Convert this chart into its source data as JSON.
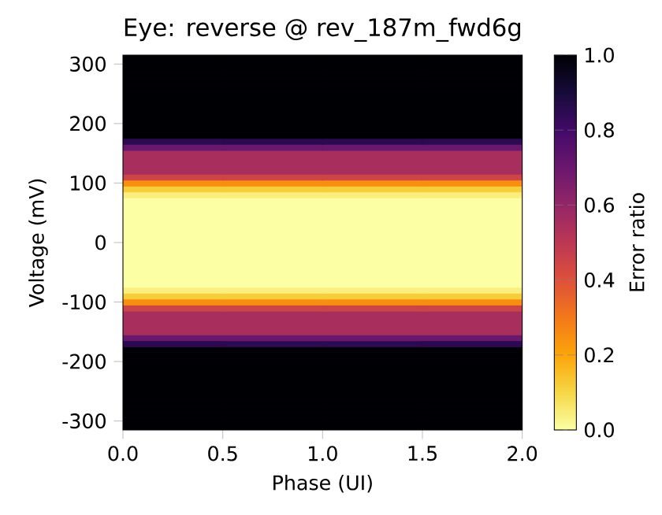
{
  "chart_data": {
    "type": "heatmap",
    "title": "Eye: reverse @ rev_187m_fwd6g",
    "xlabel": "Phase (UI)",
    "ylabel": "Voltage (mV)",
    "clabel": "Error ratio",
    "x": [
      0.25,
      0.75,
      1.25,
      1.75
    ],
    "y": [
      310,
      300,
      290,
      280,
      270,
      260,
      250,
      240,
      230,
      220,
      210,
      200,
      190,
      180,
      170,
      160,
      150,
      140,
      130,
      120,
      110,
      100,
      90,
      80,
      70,
      60,
      50,
      40,
      30,
      20,
      10,
      0,
      -10,
      -20,
      -30,
      -40,
      -50,
      -60,
      -70,
      -80,
      -90,
      -100,
      -110,
      -120,
      -130,
      -140,
      -150,
      -160,
      -170,
      -180,
      -190,
      -200,
      -210,
      -220,
      -230,
      -240,
      -250,
      -260,
      -270,
      -280,
      -290,
      -300,
      -310
    ],
    "cells": [
      [
        1,
        1,
        1,
        1
      ],
      [
        1,
        1,
        1,
        1
      ],
      [
        1,
        1,
        1,
        1
      ],
      [
        1,
        1,
        1,
        1
      ],
      [
        1,
        1,
        1,
        1
      ],
      [
        1,
        1,
        1,
        1
      ],
      [
        1,
        1,
        1,
        1
      ],
      [
        1,
        1,
        1,
        1
      ],
      [
        1,
        1,
        1,
        1
      ],
      [
        1,
        1,
        1,
        1
      ],
      [
        1,
        1,
        1,
        1
      ],
      [
        1,
        1,
        1,
        1
      ],
      [
        1,
        1,
        1,
        1
      ],
      [
        1,
        1,
        1,
        1
      ],
      [
        0.85,
        0.85,
        0.85,
        0.85
      ],
      [
        0.7,
        0.7,
        0.7,
        0.7
      ],
      [
        0.55,
        0.55,
        0.55,
        0.55
      ],
      [
        0.55,
        0.55,
        0.55,
        0.55
      ],
      [
        0.55,
        0.55,
        0.55,
        0.55
      ],
      [
        0.55,
        0.55,
        0.55,
        0.55
      ],
      [
        0.45,
        0.45,
        0.45,
        0.45
      ],
      [
        0.25,
        0.25,
        0.25,
        0.25
      ],
      [
        0.12,
        0.12,
        0.12,
        0.12
      ],
      [
        0.04,
        0.04,
        0.04,
        0.04
      ],
      [
        0,
        0,
        0,
        0
      ],
      [
        0,
        0,
        0,
        0
      ],
      [
        0,
        0,
        0,
        0
      ],
      [
        0,
        0,
        0,
        0
      ],
      [
        0,
        0,
        0,
        0
      ],
      [
        0,
        0,
        0,
        0
      ],
      [
        0,
        0,
        0,
        0
      ],
      [
        0,
        0,
        0,
        0
      ],
      [
        0,
        0,
        0,
        0
      ],
      [
        0,
        0,
        0,
        0
      ],
      [
        0,
        0,
        0,
        0
      ],
      [
        0,
        0,
        0,
        0
      ],
      [
        0,
        0,
        0,
        0
      ],
      [
        0,
        0,
        0,
        0
      ],
      [
        0,
        0,
        0,
        0
      ],
      [
        0.04,
        0.04,
        0.04,
        0.04
      ],
      [
        0.12,
        0.12,
        0.12,
        0.12
      ],
      [
        0.25,
        0.25,
        0.25,
        0.25
      ],
      [
        0.45,
        0.45,
        0.45,
        0.45
      ],
      [
        0.55,
        0.55,
        0.55,
        0.55
      ],
      [
        0.55,
        0.55,
        0.55,
        0.55
      ],
      [
        0.55,
        0.55,
        0.55,
        0.55
      ],
      [
        0.55,
        0.55,
        0.55,
        0.55
      ],
      [
        0.7,
        0.7,
        0.7,
        0.7
      ],
      [
        0.85,
        0.85,
        0.85,
        0.85
      ],
      [
        1,
        1,
        1,
        1
      ],
      [
        1,
        1,
        1,
        1
      ],
      [
        1,
        1,
        1,
        1
      ],
      [
        1,
        1,
        1,
        1
      ],
      [
        1,
        1,
        1,
        1
      ],
      [
        1,
        1,
        1,
        1
      ],
      [
        1,
        1,
        1,
        1
      ],
      [
        1,
        1,
        1,
        1
      ],
      [
        1,
        1,
        1,
        1
      ],
      [
        1,
        1,
        1,
        1
      ],
      [
        1,
        1,
        1,
        1
      ],
      [
        1,
        1,
        1,
        1
      ],
      [
        1,
        1,
        1,
        1
      ],
      [
        1,
        1,
        1,
        1
      ]
    ],
    "xlim": [
      0,
      2
    ],
    "ylim": [
      -315,
      315
    ],
    "xticks": [
      {
        "value": 0,
        "label": "0.0"
      },
      {
        "value": 0.5,
        "label": "0.5"
      },
      {
        "value": 1,
        "label": "1.0"
      },
      {
        "value": 1.5,
        "label": "1.5"
      },
      {
        "value": 2,
        "label": "2.0"
      }
    ],
    "yticks": [
      -300,
      -200,
      -100,
      0,
      100,
      200,
      300
    ],
    "clim": [
      0,
      1
    ],
    "cticks": [
      {
        "value": 0,
        "label": "0.0"
      },
      {
        "value": 0.2,
        "label": "0.2"
      },
      {
        "value": 0.4,
        "label": "0.4"
      },
      {
        "value": 0.6,
        "label": "0.6"
      },
      {
        "value": 0.8,
        "label": "0.8"
      },
      {
        "value": 1,
        "label": "1.0"
      }
    ]
  }
}
